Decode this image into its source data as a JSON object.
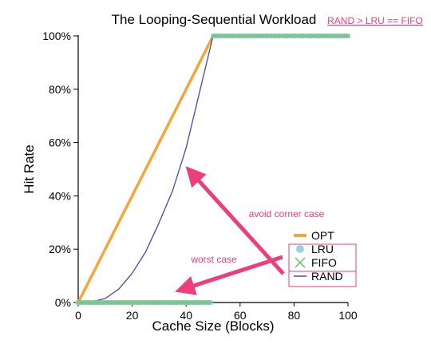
{
  "chart_data": {
    "type": "line",
    "title": "The Looping-Sequential Workload",
    "xlabel": "Cache Size (Blocks)",
    "ylabel": "Hit Rate",
    "xlim": [
      0,
      100
    ],
    "ylim": [
      0,
      100
    ],
    "xticks": [
      "0",
      "20",
      "40",
      "60",
      "80",
      "100"
    ],
    "yticks": [
      "0%",
      "20%",
      "40%",
      "60%",
      "80%",
      "100%"
    ],
    "legend_position": "bottom-right",
    "series": [
      {
        "name": "OPT",
        "color": "#f5a53a",
        "marker": "none",
        "x": [
          0,
          49,
          50,
          100
        ],
        "y": [
          0,
          98,
          100,
          100
        ]
      },
      {
        "name": "LRU",
        "color": "#9bd1de",
        "marker": "circle",
        "x": [
          0,
          49,
          50,
          100
        ],
        "y": [
          0,
          0,
          100,
          100
        ]
      },
      {
        "name": "FIFO",
        "color": "#6cbf6a",
        "marker": "x",
        "x": [
          0,
          49,
          50,
          100
        ],
        "y": [
          0,
          0,
          100,
          100
        ]
      },
      {
        "name": "RAND",
        "color": "#4b45a8",
        "marker": "none",
        "x": [
          0,
          5,
          10,
          15,
          20,
          25,
          30,
          35,
          40,
          45,
          50,
          55,
          60,
          70,
          80,
          90,
          100
        ],
        "y": [
          0,
          0.3,
          1.5,
          5,
          11,
          19,
          30,
          42,
          58,
          79,
          100,
          100,
          100,
          100,
          100,
          100,
          100
        ]
      }
    ],
    "annotations": {
      "top_note": "RAND > LRU == FIFO",
      "avoid": "avoid corner case",
      "worst": "worst case"
    }
  },
  "colors": {
    "annotation": "#ec3e7a",
    "axis": "#000000"
  }
}
